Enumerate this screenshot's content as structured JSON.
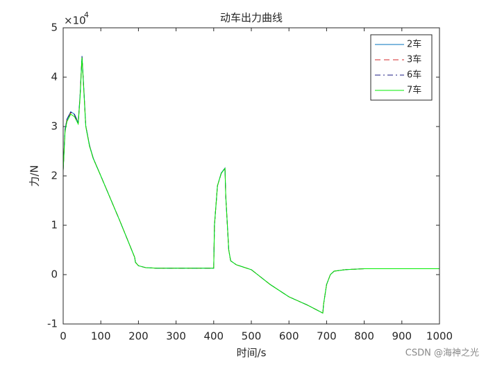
{
  "chart_data": {
    "type": "line",
    "title": "动车出力曲线",
    "x_label": "时间/s",
    "y_label": "力/N",
    "y_multiplier_base": "×10",
    "y_multiplier_power": "4",
    "watermark": "CSDN @海神之光",
    "x": [
      0,
      5,
      10,
      20,
      30,
      40,
      45,
      50,
      55,
      60,
      70,
      80,
      100,
      150,
      190,
      192,
      200,
      220,
      250,
      300,
      350,
      400,
      402,
      410,
      420,
      430,
      432,
      440,
      445,
      460,
      480,
      500,
      550,
      600,
      650,
      690,
      692,
      700,
      710,
      720,
      750,
      800,
      900,
      1000
    ],
    "series": [
      {
        "name": "2车",
        "color": "#0072bd",
        "dash": "solid",
        "values": [
          2.12,
          2.95,
          3.15,
          3.3,
          3.25,
          3.08,
          3.65,
          4.43,
          3.75,
          3.02,
          2.62,
          2.36,
          2.0,
          1.1,
          0.35,
          0.25,
          0.18,
          0.14,
          0.13,
          0.13,
          0.13,
          0.13,
          1.0,
          1.8,
          2.06,
          2.16,
          1.6,
          0.5,
          0.28,
          0.2,
          0.15,
          0.1,
          -0.2,
          -0.45,
          -0.62,
          -0.78,
          -0.6,
          -0.2,
          0.0,
          0.07,
          0.1,
          0.12,
          0.12,
          0.12
        ]
      },
      {
        "name": "3车",
        "color": "#d62728",
        "dash": "dashed",
        "values": [
          2.11,
          2.93,
          3.13,
          3.28,
          3.23,
          3.07,
          3.63,
          4.41,
          3.72,
          3.01,
          2.61,
          2.35,
          2.0,
          1.1,
          0.35,
          0.25,
          0.18,
          0.14,
          0.13,
          0.13,
          0.13,
          0.13,
          1.0,
          1.8,
          2.05,
          2.15,
          1.6,
          0.5,
          0.28,
          0.2,
          0.15,
          0.1,
          -0.2,
          -0.45,
          -0.62,
          -0.78,
          -0.6,
          -0.2,
          0.0,
          0.07,
          0.1,
          0.12,
          0.12,
          0.12
        ]
      },
      {
        "name": "6车",
        "color": "#1a1a80",
        "dash": "dashdot",
        "values": [
          2.12,
          2.94,
          3.14,
          3.29,
          3.24,
          3.07,
          3.64,
          4.42,
          3.73,
          3.01,
          2.61,
          2.35,
          2.0,
          1.1,
          0.35,
          0.25,
          0.18,
          0.14,
          0.13,
          0.13,
          0.13,
          0.13,
          1.0,
          1.8,
          2.05,
          2.15,
          1.6,
          0.5,
          0.28,
          0.2,
          0.15,
          0.1,
          -0.2,
          -0.45,
          -0.62,
          -0.78,
          -0.6,
          -0.2,
          0.0,
          0.07,
          0.1,
          0.12,
          0.12,
          0.12
        ]
      },
      {
        "name": "7车",
        "color": "#00ee00",
        "dash": "solid",
        "values": [
          2.1,
          2.9,
          3.1,
          3.25,
          3.2,
          3.05,
          3.6,
          4.4,
          3.7,
          3.0,
          2.6,
          2.35,
          2.0,
          1.1,
          0.35,
          0.25,
          0.18,
          0.14,
          0.13,
          0.13,
          0.13,
          0.13,
          1.0,
          1.8,
          2.05,
          2.15,
          1.6,
          0.5,
          0.28,
          0.2,
          0.15,
          0.1,
          -0.2,
          -0.45,
          -0.62,
          -0.78,
          -0.6,
          -0.2,
          0.0,
          0.07,
          0.1,
          0.12,
          0.12,
          0.12
        ]
      }
    ],
    "xlim": [
      0,
      1000
    ],
    "xticks": [
      0,
      100,
      200,
      300,
      400,
      500,
      600,
      700,
      800,
      900,
      1000
    ],
    "ylim": [
      -1,
      5
    ],
    "yticks": [
      -1,
      0,
      1,
      2,
      3,
      4,
      5
    ],
    "grid": false,
    "legend": "top-right"
  }
}
